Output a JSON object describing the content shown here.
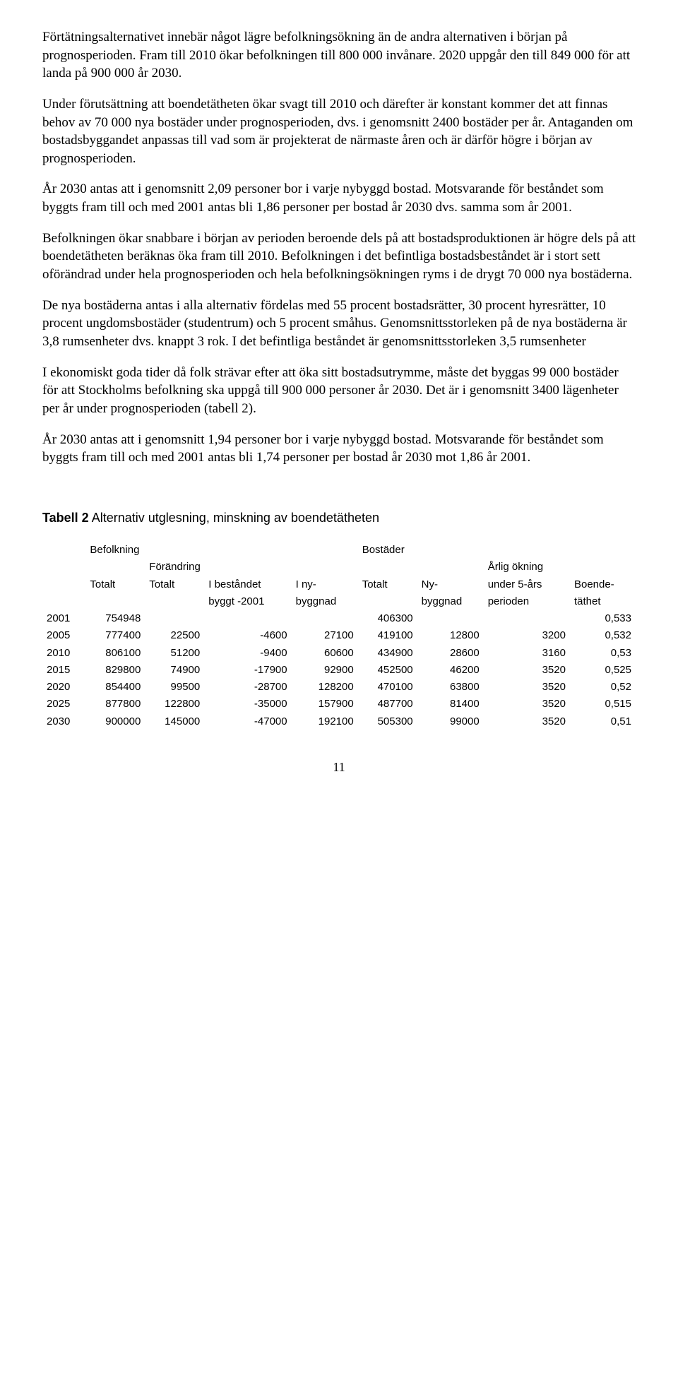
{
  "paragraphs": {
    "p1": "Förtätningsalternativet innebär något lägre befolkningsökning än de andra alternativen i början på prognosperioden. Fram till 2010 ökar befolkningen till 800 000 invånare. 2020 uppgår den till 849 000 för att landa på 900 000 år 2030.",
    "p2": "Under förutsättning att boendetätheten ökar svagt till 2010 och därefter är konstant kommer det att finnas behov av 70 000 nya bostäder under prognosperioden, dvs. i genomsnitt 2400 bostäder per år. Antaganden om bostadsbyggandet anpassas till vad som är projekterat de närmaste åren och är därför högre i början av prognosperioden.",
    "p3": "År 2030 antas att i genomsnitt 2,09 personer bor i varje nybyggd bostad. Motsvarande för beståndet som byggts fram till och med 2001 antas bli 1,86 personer per bostad år 2030 dvs. samma som år 2001.",
    "p4": "Befolkningen ökar snabbare i början av perioden beroende dels på att bostadsproduktionen är högre dels på att boendetätheten beräknas öka fram till 2010. Befolkningen i det befintliga bostadsbeståndet är i stort sett oförändrad under hela prognosperioden och hela befolkningsökningen ryms i de drygt 70 000 nya bostäderna.",
    "p5": "De nya bostäderna antas i alla alternativ fördelas med 55 procent bostadsrätter, 30 procent hyresrätter, 10 procent ungdomsbostäder (studentrum) och 5 procent småhus. Genomsnittsstorleken på de nya bostäderna är 3,8 rumsenheter dvs. knappt 3 rok. I det befintliga beståndet är genomsnittsstorleken 3,5 rumsenheter",
    "p6": "I ekonomiskt goda tider då folk strävar efter att öka sitt bostadsutrymme, måste det byggas 99 000 bostäder för att Stockholms befolkning ska uppgå till 900 000 personer år 2030. Det är i genomsnitt 3400 lägenheter per år under prognosperioden (tabell 2).",
    "p7": "År 2030 antas att i genomsnitt 1,94 personer bor i varje nybyggd bostad. Motsvarande för beståndet som byggts fram till och med 2001 antas bli 1,74 personer per bostad år 2030 mot 1,86 år 2001."
  },
  "table": {
    "title_label": "Tabell 2",
    "title_text": "Alternativ utglesning, minskning av boendetätheten",
    "group1": "Befolkning",
    "group2": "Bostäder",
    "h_forandring": "Förändring",
    "h_arlig": "Årlig ökning",
    "h_totalt1": "Totalt",
    "h_totalt2": "Totalt",
    "h_ibest": "I beståndet",
    "h_iny": "I ny-",
    "h_totalt3": "Totalt",
    "h_ny": "Ny-",
    "h_under": "under 5-års",
    "h_boende": "Boende-",
    "h_byggt": "byggt -2001",
    "h_byggnad": "byggnad",
    "h_byggnad2": "byggnad",
    "h_perioden": "perioden",
    "h_tathet": "täthet",
    "rows": [
      {
        "year": "2001",
        "c1": "754948",
        "c2": "",
        "c3": "",
        "c4": "",
        "c5": "406300",
        "c6": "",
        "c7": "",
        "c8": "0,533"
      },
      {
        "year": "2005",
        "c1": "777400",
        "c2": "22500",
        "c3": "-4600",
        "c4": "27100",
        "c5": "419100",
        "c6": "12800",
        "c7": "3200",
        "c8": "0,532"
      },
      {
        "year": "2010",
        "c1": "806100",
        "c2": "51200",
        "c3": "-9400",
        "c4": "60600",
        "c5": "434900",
        "c6": "28600",
        "c7": "3160",
        "c8": "0,53"
      },
      {
        "year": "2015",
        "c1": "829800",
        "c2": "74900",
        "c3": "-17900",
        "c4": "92900",
        "c5": "452500",
        "c6": "46200",
        "c7": "3520",
        "c8": "0,525"
      },
      {
        "year": "2020",
        "c1": "854400",
        "c2": "99500",
        "c3": "-28700",
        "c4": "128200",
        "c5": "470100",
        "c6": "63800",
        "c7": "3520",
        "c8": "0,52"
      },
      {
        "year": "2025",
        "c1": "877800",
        "c2": "122800",
        "c3": "-35000",
        "c4": "157900",
        "c5": "487700",
        "c6": "81400",
        "c7": "3520",
        "c8": "0,515"
      },
      {
        "year": "2030",
        "c1": "900000",
        "c2": "145000",
        "c3": "-47000",
        "c4": "192100",
        "c5": "505300",
        "c6": "99000",
        "c7": "3520",
        "c8": "0,51"
      }
    ]
  },
  "page_number": "11"
}
